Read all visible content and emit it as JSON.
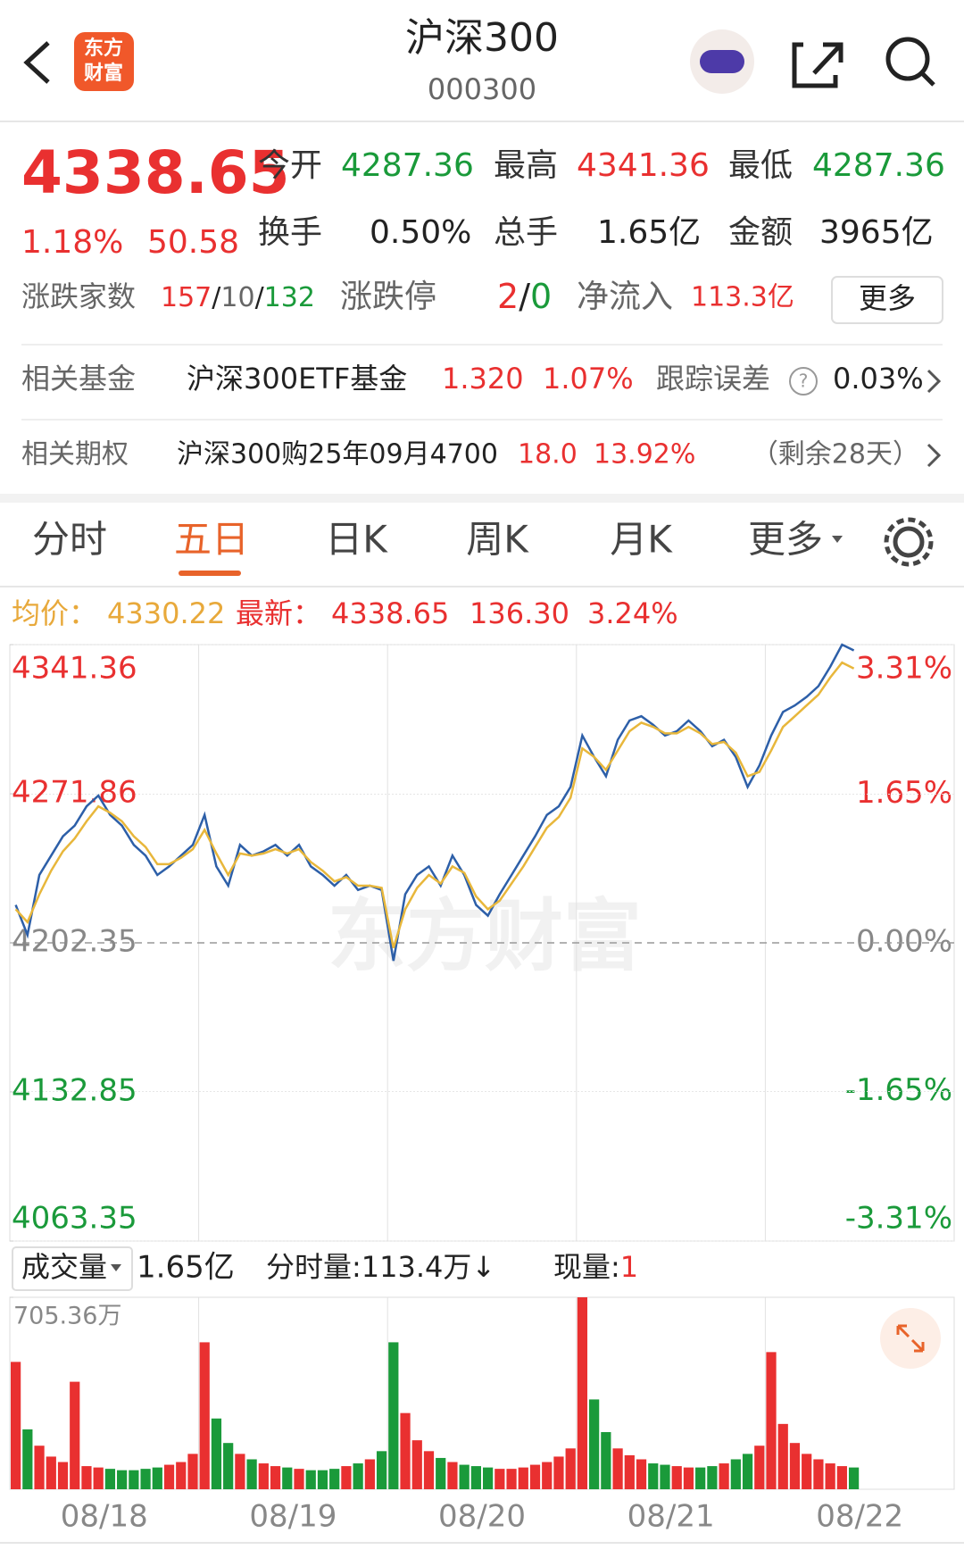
{
  "header": {
    "logo_top": "东方",
    "logo_bottom": "财富",
    "title": "沪深300",
    "code": "000300"
  },
  "quote": {
    "price": "4338.65",
    "change_pct": "1.18%",
    "change": "50.58",
    "fields": [
      {
        "label": "今开",
        "value": "4287.36"
      },
      {
        "label": "最高",
        "value": "4341.36"
      },
      {
        "label": "最低",
        "value": "4287.36"
      },
      {
        "label": "换手",
        "value": "0.50%"
      },
      {
        "label": "总手",
        "value": "1.65亿"
      },
      {
        "label": "金额",
        "value": "3965亿"
      }
    ],
    "breadth": {
      "label": "涨跌家数",
      "up": "157",
      "sep": "/",
      "flat": "10",
      "down": "132"
    },
    "limit": {
      "label": "涨跌停",
      "up": "2",
      "sep": "/",
      "down": "0"
    },
    "flow": {
      "label": "净流入",
      "value": "113.3亿"
    },
    "more": "更多"
  },
  "fund": {
    "label": "相关基金",
    "name": "沪深300ETF基金",
    "price": "1.320",
    "pct": "1.07%",
    "err_label": "跟踪误差",
    "err": "0.03%"
  },
  "option": {
    "label": "相关期权",
    "name": "沪深300购25年09月4700",
    "price": "18.0",
    "pct": "13.92%",
    "remain": "（剩余28天）"
  },
  "tabs": [
    "分时",
    "五日",
    "日K",
    "周K",
    "月K",
    "更多"
  ],
  "legend": {
    "avg_label": "均价：",
    "avg": "4330.22",
    "latest_label": "最新：",
    "latest": "4338.65",
    "change": "136.30",
    "pct": "3.24%"
  },
  "volume_bar": {
    "label": "成交量",
    "total": "1.65亿",
    "segment": "分时量:113.4万↓",
    "now_label": "现量:",
    "now": "1"
  },
  "watermark": "东方财富",
  "chart_data": {
    "type": "line",
    "categories": [
      null,
      null,
      null,
      null,
      null,
      null,
      null,
      null,
      "08/18",
      null,
      null,
      null,
      null,
      null,
      null,
      null,
      null,
      null,
      null,
      null,
      null,
      null,
      null,
      null,
      "08/19",
      null,
      null,
      null,
      null,
      null,
      null,
      null,
      null,
      null,
      null,
      null,
      null,
      null,
      null,
      null,
      "08/20",
      null,
      null,
      null,
      null,
      null,
      null,
      null,
      null,
      null,
      null,
      null,
      null,
      null,
      null,
      null,
      "08/21",
      null,
      null,
      null,
      null,
      null,
      null,
      null,
      null,
      null,
      null,
      null,
      null,
      null,
      null,
      null,
      "08/22",
      null,
      null,
      null,
      null,
      null,
      null,
      null
    ],
    "series": [
      {
        "color": "#2d5fa8",
        "values": [
          4220,
          4206,
          4234,
          4243,
          4252,
          4257,
          4266,
          4271,
          4262,
          4257,
          4248,
          4243,
          4234,
          4238,
          4243,
          4248,
          4262,
          4238,
          4229,
          4248,
          4243,
          4245,
          4248,
          4243,
          4248,
          4238,
          4234,
          4229,
          4234,
          4227,
          4229,
          4227,
          4194,
          4225,
          4234,
          4238,
          4229,
          4243,
          4234,
          4220,
          4215,
          4225,
          4234,
          4243,
          4252,
          4262,
          4266,
          4275,
          4299,
          4289,
          4280,
          4297,
          4306,
          4308,
          4304,
          4299,
          4301,
          4306,
          4301,
          4294,
          4297,
          4289,
          4275,
          4285,
          4299,
          4310,
          4313,
          4317,
          4322,
          4331,
          4341.36,
          4338.65,
          null,
          null,
          null,
          null,
          null,
          null,
          null,
          null
        ]
      },
      {
        "color": "#e8b73b",
        "values": [
          4218,
          4212,
          4225,
          4236,
          4245,
          4251,
          4259,
          4266,
          4263,
          4259,
          4252,
          4247,
          4239,
          4239,
          4242,
          4246,
          4255,
          4244,
          4234,
          4244,
          4243,
          4244,
          4246,
          4244,
          4246,
          4240,
          4236,
          4231,
          4233,
          4229,
          4229,
          4228,
          4200,
          4218,
          4228,
          4234,
          4230,
          4238,
          4235,
          4224,
          4218,
          4222,
          4230,
          4238,
          4247,
          4256,
          4261,
          4270,
          4293,
          4289,
          4283,
          4292,
          4301,
          4305,
          4303,
          4300,
          4300,
          4303,
          4300,
          4295,
          4296,
          4291,
          4280,
          4282,
          4292,
          4303,
          4308,
          4313,
          4318,
          4326,
          4333,
          4330.22,
          null,
          null,
          null,
          null,
          null,
          null,
          null,
          null
        ]
      }
    ],
    "ylim": [
      4063.35,
      4341.36
    ],
    "yticks": [
      4063.35,
      4132.85,
      4202.35,
      4271.86,
      4341.36
    ],
    "y2lim": [
      -3.31,
      3.31
    ],
    "y2ticks": [
      {
        "value": -3.31,
        "label": "-3.31%"
      },
      {
        "value": -1.65,
        "label": "-1.65%"
      },
      {
        "value": 0,
        "label": "0.00%"
      },
      {
        "value": 1.65,
        "label": "1.65%"
      },
      {
        "value": 3.31,
        "label": "3.31%"
      }
    ],
    "up_color": "#e93030",
    "down_color": "#1a9a3a",
    "flat_color": "#888888",
    "volume": {
      "ylim": [
        0,
        705.36
      ],
      "yticks": [
        {
          "value": 705.36,
          "label": "705.36万"
        }
      ],
      "values": [
        468,
        220,
        160,
        120,
        100,
        395,
        85,
        80,
        75,
        70,
        70,
        75,
        80,
        90,
        100,
        130,
        540,
        260,
        170,
        130,
        110,
        95,
        85,
        80,
        75,
        70,
        70,
        75,
        85,
        95,
        110,
        140,
        540,
        280,
        180,
        140,
        115,
        100,
        90,
        85,
        80,
        75,
        75,
        80,
        90,
        100,
        120,
        150,
        705.36,
        330,
        210,
        150,
        125,
        110,
        95,
        90,
        85,
        80,
        80,
        85,
        95,
        110,
        130,
        160,
        504,
        240,
        170,
        130,
        110,
        95,
        85,
        80,
        null,
        null,
        null,
        null,
        null,
        null,
        null,
        null
      ]
    }
  }
}
